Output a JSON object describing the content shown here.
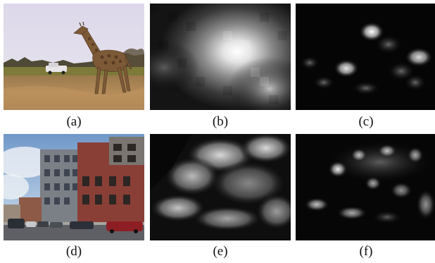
{
  "figure": {
    "panels": [
      {
        "id": "a",
        "caption": "(a)",
        "content": "photo",
        "subject": "giraffe"
      },
      {
        "id": "b",
        "caption": "(b)",
        "content": "saliency map",
        "resolution": "coarse"
      },
      {
        "id": "c",
        "caption": "(c)",
        "content": "saliency map",
        "resolution": "fine"
      },
      {
        "id": "d",
        "caption": "(d)",
        "content": "photo",
        "subject": "street with buildings"
      },
      {
        "id": "e",
        "caption": "(e)",
        "content": "saliency map",
        "resolution": "coarse"
      },
      {
        "id": "f",
        "caption": "(f)",
        "content": "saliency map",
        "resolution": "fine"
      }
    ]
  }
}
